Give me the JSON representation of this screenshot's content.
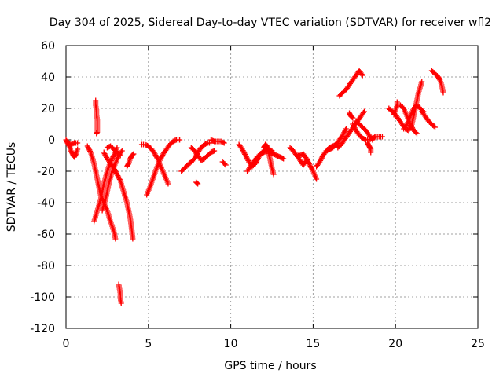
{
  "chart_data": {
    "type": "scatter",
    "title": "Day 304 of 2025, Sidereal Day-to-day VTEC variation (SDTVAR) for receiver wfl2",
    "xlabel": "GPS time / hours",
    "ylabel": "SDTVAR / TECUs",
    "xlim": [
      0,
      25
    ],
    "ylim": [
      -120,
      60
    ],
    "xticks": [
      0,
      5,
      10,
      15,
      20,
      25
    ],
    "yticks": [
      -120,
      -100,
      -80,
      -60,
      -40,
      -20,
      0,
      20,
      40,
      60
    ],
    "grid": true,
    "marker": "plus",
    "color": "#ff0000",
    "series": [
      {
        "x": [
          0.0,
          0.1,
          0.2,
          0.3,
          0.4,
          0.5,
          0.6,
          0.7
        ],
        "y": [
          0,
          -2,
          -4,
          -7,
          -9,
          -11,
          -9,
          -6
        ]
      },
      {
        "x": [
          0.1,
          0.3,
          0.5,
          0.7
        ],
        "y": [
          -2,
          -3,
          -2,
          -2
        ]
      },
      {
        "x": [
          1.8,
          1.8,
          1.85,
          1.85,
          1.9,
          1.9,
          1.85
        ],
        "y": [
          25,
          22,
          19,
          16,
          13,
          5,
          4
        ]
      },
      {
        "x": [
          1.3,
          1.5,
          1.7,
          1.9,
          2.1,
          2.3,
          2.5,
          2.7,
          2.9,
          3.0
        ],
        "y": [
          -4,
          -8,
          -15,
          -25,
          -35,
          -40,
          -45,
          -52,
          -58,
          -63
        ]
      },
      {
        "x": [
          1.7,
          1.9,
          2.1,
          2.3,
          2.5,
          2.7,
          2.9,
          3.1
        ],
        "y": [
          -52,
          -45,
          -38,
          -28,
          -20,
          -14,
          -10,
          -5
        ]
      },
      {
        "x": [
          2.2,
          2.4,
          2.6,
          2.8,
          3.0,
          3.2,
          3.4
        ],
        "y": [
          -45,
          -38,
          -28,
          -20,
          -15,
          -10,
          -7
        ]
      },
      {
        "x": [
          2.3,
          2.5,
          2.7,
          2.9,
          3.1,
          3.3,
          3.5,
          3.7,
          3.9,
          4.0,
          4.05
        ],
        "y": [
          -8,
          -12,
          -15,
          -18,
          -22,
          -26,
          -33,
          -40,
          -50,
          -58,
          -63
        ]
      },
      {
        "x": [
          2.5,
          2.7,
          2.9,
          3.1,
          3.3
        ],
        "y": [
          -5,
          -4,
          -6,
          -8,
          -10
        ]
      },
      {
        "x": [
          3.2,
          3.25,
          3.3,
          3.3,
          3.35
        ],
        "y": [
          -92,
          -95,
          -98,
          -101,
          -104
        ]
      },
      {
        "x": [
          3.7,
          3.8,
          3.9,
          4.0,
          4.1
        ],
        "y": [
          -17,
          -15,
          -12,
          -10,
          -9
        ]
      },
      {
        "x": [
          4.6,
          4.8,
          5.0,
          5.2,
          5.4,
          5.6,
          5.8,
          6.0,
          6.2
        ],
        "y": [
          -3,
          -3,
          -4,
          -6,
          -9,
          -13,
          -18,
          -23,
          -28
        ]
      },
      {
        "x": [
          4.9,
          5.1,
          5.3,
          5.5,
          5.7,
          5.9,
          6.1,
          6.3,
          6.5,
          6.7,
          6.9
        ],
        "y": [
          -35,
          -30,
          -24,
          -18,
          -13,
          -9,
          -6,
          -3,
          -1,
          0,
          0
        ]
      },
      {
        "x": [
          7.0,
          7.2,
          7.4,
          7.6,
          7.8,
          8.0,
          8.2,
          8.4,
          8.6,
          8.8
        ],
        "y": [
          -20,
          -18,
          -16,
          -14,
          -12,
          -8,
          -5,
          -3,
          -2,
          -2
        ]
      },
      {
        "x": [
          7.6,
          7.8,
          8.0,
          8.2,
          8.4,
          8.6,
          8.8,
          9.0
        ],
        "y": [
          -5,
          -7,
          -10,
          -13,
          -12,
          -10,
          -8,
          -7
        ]
      },
      {
        "x": [
          7.9,
          8.0
        ],
        "y": [
          -27,
          -28
        ]
      },
      {
        "x": [
          8.8,
          9.0,
          9.2,
          9.4,
          9.6
        ],
        "y": [
          0,
          -1,
          -1,
          -1,
          -2
        ]
      },
      {
        "x": [
          9.5,
          9.7
        ],
        "y": [
          -14,
          -16
        ]
      },
      {
        "x": [
          10.5,
          10.7,
          10.9,
          11.1,
          11.3,
          11.5,
          11.7,
          11.9,
          12.1,
          12.3,
          12.5
        ],
        "y": [
          -3,
          -6,
          -10,
          -14,
          -17,
          -15,
          -11,
          -8,
          -6,
          -6,
          -7
        ]
      },
      {
        "x": [
          11.0,
          11.2,
          11.4,
          11.6,
          11.8,
          12.0,
          12.2,
          12.4,
          12.6,
          12.8,
          13.0,
          13.2
        ],
        "y": [
          -20,
          -17,
          -14,
          -11,
          -9,
          -8,
          -7,
          -8,
          -9,
          -10,
          -11,
          -12
        ]
      },
      {
        "x": [
          12.0,
          12.1,
          12.2,
          12.3,
          12.4,
          12.5,
          12.6
        ],
        "y": [
          -5,
          -3,
          -4,
          -8,
          -13,
          -18,
          -22
        ]
      },
      {
        "x": [
          13.6,
          13.8,
          14.0,
          14.2,
          14.4,
          14.6
        ],
        "y": [
          -5,
          -7,
          -10,
          -13,
          -16,
          -13
        ]
      },
      {
        "x": [
          14.0,
          14.2,
          14.4,
          14.6,
          14.8,
          15.0,
          15.2
        ],
        "y": [
          -10,
          -10,
          -9,
          -12,
          -16,
          -20,
          -25
        ]
      },
      {
        "x": [
          15.2,
          15.4,
          15.6,
          15.8,
          16.0,
          16.2,
          16.4
        ],
        "y": [
          -17,
          -14,
          -10,
          -7,
          -5,
          -4,
          -3
        ]
      },
      {
        "x": [
          15.8,
          16.0,
          16.2,
          16.4,
          16.6,
          16.8,
          17.0
        ],
        "y": [
          -7,
          -6,
          -5,
          -3,
          0,
          3,
          7
        ]
      },
      {
        "x": [
          16.5,
          16.7,
          16.9,
          17.1,
          17.3,
          17.5,
          17.7,
          17.9,
          18.1
        ],
        "y": [
          -5,
          -3,
          0,
          3,
          6,
          9,
          12,
          15,
          18
        ]
      },
      {
        "x": [
          16.6,
          16.8,
          17.0,
          17.2,
          17.4,
          17.6,
          17.8,
          18.0
        ],
        "y": [
          28,
          30,
          32,
          35,
          38,
          41,
          44,
          41
        ]
      },
      {
        "x": [
          17.2,
          17.3,
          17.4
        ],
        "y": [
          17,
          15,
          14
        ]
      },
      {
        "x": [
          17.4,
          17.6,
          17.8,
          18.0,
          18.2,
          18.4,
          18.6,
          18.8,
          19.0,
          19.2
        ],
        "y": [
          10,
          6,
          3,
          1,
          0,
          0,
          1,
          2,
          2,
          2
        ]
      },
      {
        "x": [
          17.6,
          17.8,
          18.0,
          18.2,
          18.4,
          18.6
        ],
        "y": [
          12,
          10,
          8,
          6,
          3,
          0
        ]
      },
      {
        "x": [
          18.3,
          18.4,
          18.5,
          18.5
        ],
        "y": [
          -2,
          -4,
          -6,
          -8
        ]
      },
      {
        "x": [
          19.6,
          19.8,
          20.0,
          20.2,
          20.4,
          20.6,
          20.8,
          21.0,
          21.2,
          21.4,
          21.6
        ],
        "y": [
          20,
          18,
          16,
          13,
          10,
          7,
          6,
          10,
          20,
          30,
          37
        ]
      },
      {
        "x": [
          19.9,
          20.0,
          20.1,
          20.1
        ],
        "y": [
          16,
          19,
          22,
          24
        ]
      },
      {
        "x": [
          20.3,
          20.5,
          20.7,
          20.9,
          21.1,
          21.3
        ],
        "y": [
          22,
          20,
          15,
          10,
          6,
          4
        ]
      },
      {
        "x": [
          20.5,
          20.7,
          20.9,
          21.1,
          21.3,
          21.5,
          21.7
        ],
        "y": [
          7,
          10,
          15,
          20,
          22,
          20,
          18
        ]
      },
      {
        "x": [
          21.6,
          21.8,
          22.0,
          22.2,
          22.4
        ],
        "y": [
          18,
          15,
          12,
          10,
          8
        ]
      },
      {
        "x": [
          22.2,
          22.4,
          22.6,
          22.7,
          22.8,
          22.9
        ],
        "y": [
          44,
          42,
          40,
          38,
          35,
          30
        ]
      }
    ]
  }
}
